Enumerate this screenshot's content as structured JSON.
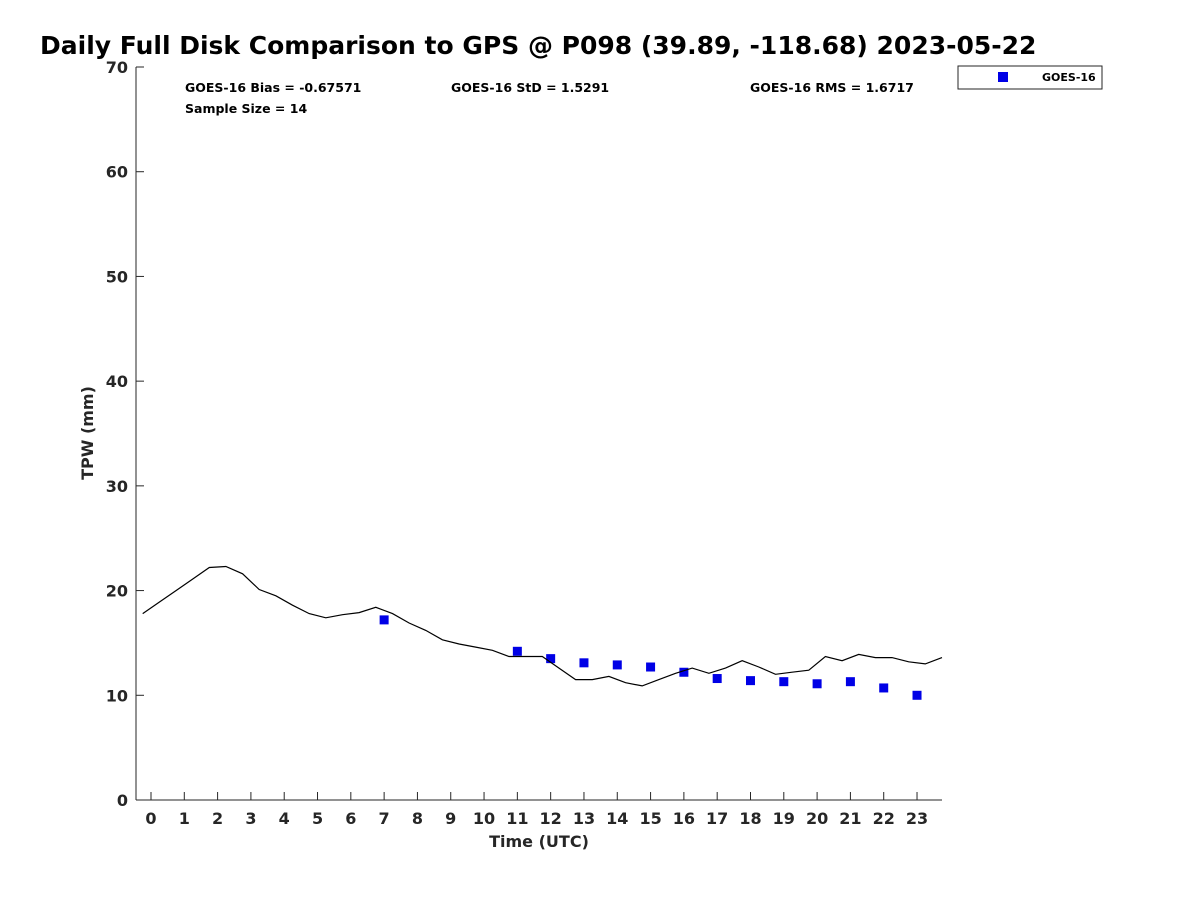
{
  "chart_data": {
    "type": "scatter",
    "title": "Daily Full Disk Comparison to GPS @ P098 (39.89, -118.68) 2023-05-22",
    "xlabel": "Time (UTC)",
    "ylabel": "TPW (mm)",
    "xlim": [
      -0.45,
      23.75
    ],
    "ylim": [
      0,
      70
    ],
    "x_ticks": [
      "0",
      "1",
      "2",
      "3",
      "4",
      "5",
      "6",
      "7",
      "8",
      "9",
      "10",
      "11",
      "12",
      "13",
      "14",
      "15",
      "16",
      "17",
      "18",
      "19",
      "20",
      "21",
      "22",
      "23"
    ],
    "y_ticks": [
      "0",
      "10",
      "20",
      "30",
      "40",
      "50",
      "60",
      "70"
    ],
    "grid": false,
    "legend_position": "outside-top-right",
    "stats": {
      "bias": "GOES-16 Bias = -0.67571",
      "std": "GOES-16 StD = 1.5291",
      "rms": "GOES-16 RMS = 1.6717",
      "sample": "Sample Size = 14"
    },
    "series": [
      {
        "name": "GOES-16",
        "kind": "scatter",
        "color": "#0000e6",
        "marker": "square",
        "x": [
          7,
          11,
          12,
          13,
          14,
          15,
          16,
          17,
          18,
          19,
          20,
          21,
          22,
          23
        ],
        "y": [
          17.2,
          14.2,
          13.5,
          13.1,
          12.9,
          12.7,
          12.2,
          11.6,
          11.4,
          11.3,
          11.1,
          11.3,
          10.7,
          10.0
        ]
      },
      {
        "kind": "line",
        "color": "#000000",
        "x": [
          -0.25,
          0.25,
          0.75,
          1.25,
          1.75,
          2.25,
          2.75,
          3.25,
          3.75,
          4.25,
          4.75,
          5.25,
          5.75,
          6.25,
          6.75,
          7.25,
          7.75,
          8.25,
          8.75,
          9.25,
          9.75,
          10.25,
          10.75,
          11.25,
          11.75,
          12.25,
          12.75,
          13.25,
          13.75,
          14.25,
          14.75,
          15.25,
          15.75,
          16.25,
          16.75,
          17.25,
          17.75,
          18.25,
          18.75,
          19.25,
          19.75,
          20.25,
          20.75,
          21.25,
          21.75,
          22.25,
          22.75,
          23.25,
          23.75
        ],
        "y": [
          17.8,
          18.9,
          20.0,
          21.1,
          22.2,
          22.3,
          21.6,
          20.1,
          19.5,
          18.6,
          17.8,
          17.4,
          17.7,
          17.9,
          18.4,
          17.8,
          16.9,
          16.2,
          15.3,
          14.9,
          14.6,
          14.3,
          13.7,
          13.7,
          13.7,
          12.6,
          11.5,
          11.5,
          11.8,
          11.2,
          10.9,
          11.5,
          12.1,
          12.6,
          12.1,
          12.6,
          13.3,
          12.7,
          12.0,
          12.2,
          12.4,
          13.7,
          13.3,
          13.9,
          13.6,
          13.6,
          13.2,
          13.0,
          13.6
        ]
      }
    ]
  }
}
